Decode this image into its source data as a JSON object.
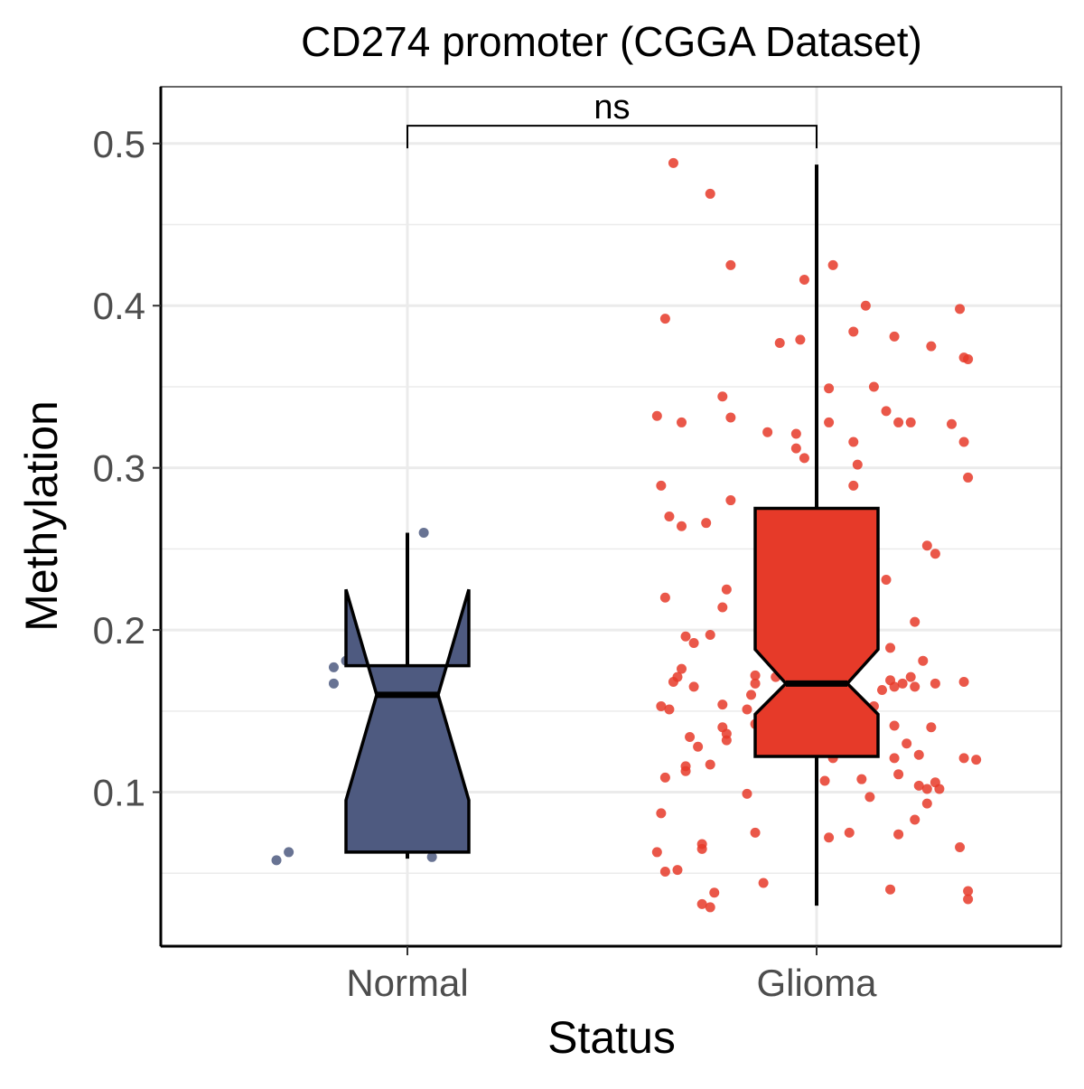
{
  "chart_data": {
    "type": "boxplot",
    "title": "CD274 promoter (CGGA Dataset)",
    "xlabel": "Status",
    "ylabel": "Methylation",
    "categories": [
      "Normal",
      "Glioma"
    ],
    "ylim": [
      0.005,
      0.535
    ],
    "yticks": [
      0.1,
      0.2,
      0.3,
      0.4,
      0.5
    ],
    "ytick_labels": [
      "0.1",
      "0.2",
      "0.3",
      "0.4",
      "0.5"
    ],
    "grid": true,
    "notched": true,
    "colors": {
      "Normal": "#4E5A80",
      "Glioma": "#E63A29"
    },
    "boxes": [
      {
        "category": "Normal",
        "whisker_low": 0.059,
        "q1": 0.063,
        "median": 0.16,
        "q3": 0.178,
        "whisker_high": 0.26,
        "notch_low": 0.095,
        "notch_high": 0.225
      },
      {
        "category": "Glioma",
        "whisker_low": 0.03,
        "q1": 0.122,
        "median": 0.167,
        "q3": 0.275,
        "whisker_high": 0.487,
        "notch_low": 0.148,
        "notch_high": 0.188
      }
    ],
    "significance": {
      "groups": [
        "Normal",
        "Glioma"
      ],
      "label": "ns",
      "y": 0.511
    },
    "points": {
      "Normal": [
        [
          -0.32,
          0.058
        ],
        [
          -0.29,
          0.063
        ],
        [
          -0.18,
          0.177
        ],
        [
          -0.18,
          0.167
        ],
        [
          -0.15,
          0.181
        ],
        [
          0.04,
          0.26
        ],
        [
          0.06,
          0.06
        ]
      ],
      "Glioma": [
        [
          -0.35,
          0.488
        ],
        [
          -0.26,
          0.469
        ],
        [
          -0.21,
          0.425
        ],
        [
          -0.03,
          0.416
        ],
        [
          0.04,
          0.425
        ],
        [
          -0.37,
          0.392
        ],
        [
          0.12,
          0.4
        ],
        [
          0.09,
          0.384
        ],
        [
          0.19,
          0.381
        ],
        [
          0.28,
          0.375
        ],
        [
          0.35,
          0.398
        ],
        [
          0.36,
          0.368
        ],
        [
          0.37,
          0.367
        ],
        [
          -0.09,
          0.377
        ],
        [
          -0.04,
          0.379
        ],
        [
          -0.23,
          0.344
        ],
        [
          0.03,
          0.349
        ],
        [
          0.14,
          0.35
        ],
        [
          -0.39,
          0.332
        ],
        [
          -0.33,
          0.328
        ],
        [
          -0.21,
          0.331
        ],
        [
          -0.12,
          0.322
        ],
        [
          -0.05,
          0.321
        ],
        [
          -0.05,
          0.312
        ],
        [
          -0.03,
          0.306
        ],
        [
          0.03,
          0.328
        ],
        [
          0.09,
          0.316
        ],
        [
          0.17,
          0.335
        ],
        [
          0.2,
          0.328
        ],
        [
          0.23,
          0.328
        ],
        [
          0.33,
          0.327
        ],
        [
          0.36,
          0.316
        ],
        [
          0.37,
          0.294
        ],
        [
          0.1,
          0.302
        ],
        [
          0.09,
          0.289
        ],
        [
          -0.38,
          0.289
        ],
        [
          -0.21,
          0.28
        ],
        [
          -0.36,
          0.27
        ],
        [
          -0.33,
          0.264
        ],
        [
          -0.27,
          0.266
        ],
        [
          0.27,
          0.252
        ],
        [
          0.29,
          0.247
        ],
        [
          0.17,
          0.231
        ],
        [
          -0.37,
          0.22
        ],
        [
          -0.22,
          0.225
        ],
        [
          -0.23,
          0.214
        ],
        [
          0.24,
          0.205
        ],
        [
          -0.32,
          0.196
        ],
        [
          -0.3,
          0.192
        ],
        [
          -0.26,
          0.197
        ],
        [
          0.18,
          0.189
        ],
        [
          0.26,
          0.181
        ],
        [
          -0.33,
          0.176
        ],
        [
          -0.34,
          0.171
        ],
        [
          -0.35,
          0.168
        ],
        [
          -0.3,
          0.165
        ],
        [
          -0.38,
          0.153
        ],
        [
          -0.36,
          0.151
        ],
        [
          -0.23,
          0.154
        ],
        [
          -0.17,
          0.151
        ],
        [
          -0.15,
          0.172
        ],
        [
          -0.15,
          0.167
        ],
        [
          -0.16,
          0.16
        ],
        [
          -0.1,
          0.171
        ],
        [
          -0.11,
          0.151
        ],
        [
          -0.15,
          0.142
        ],
        [
          -0.14,
          0.133
        ],
        [
          0.18,
          0.169
        ],
        [
          0.19,
          0.165
        ],
        [
          0.21,
          0.167
        ],
        [
          0.23,
          0.171
        ],
        [
          0.29,
          0.167
        ],
        [
          0.36,
          0.168
        ],
        [
          0.16,
          0.163
        ],
        [
          0.14,
          0.153
        ],
        [
          0.24,
          0.165
        ],
        [
          -0.31,
          0.134
        ],
        [
          -0.29,
          0.128
        ],
        [
          -0.23,
          0.14
        ],
        [
          -0.22,
          0.136
        ],
        [
          -0.22,
          0.132
        ],
        [
          0.19,
          0.141
        ],
        [
          0.28,
          0.14
        ],
        [
          0.12,
          0.133
        ],
        [
          0.22,
          0.13
        ],
        [
          0.25,
          0.123
        ],
        [
          0.19,
          0.121
        ],
        [
          -0.32,
          0.116
        ],
        [
          -0.32,
          0.113
        ],
        [
          -0.26,
          0.117
        ],
        [
          -0.37,
          0.109
        ],
        [
          0.2,
          0.111
        ],
        [
          0.36,
          0.121
        ],
        [
          0.39,
          0.12
        ],
        [
          0.02,
          0.107
        ],
        [
          0.11,
          0.108
        ],
        [
          0.25,
          0.104
        ],
        [
          0.29,
          0.106
        ],
        [
          0.3,
          0.102
        ],
        [
          0.27,
          0.102
        ],
        [
          0.13,
          0.097
        ],
        [
          -0.17,
          0.099
        ],
        [
          0.27,
          0.093
        ],
        [
          0.24,
          0.083
        ],
        [
          -0.38,
          0.087
        ],
        [
          -0.15,
          0.075
        ],
        [
          0.08,
          0.075
        ],
        [
          0.03,
          0.072
        ],
        [
          0.2,
          0.074
        ],
        [
          -0.28,
          0.068
        ],
        [
          -0.39,
          0.063
        ],
        [
          -0.28,
          0.065
        ],
        [
          0.35,
          0.066
        ],
        [
          -0.37,
          0.051
        ],
        [
          -0.34,
          0.052
        ],
        [
          -0.13,
          0.044
        ],
        [
          0.18,
          0.04
        ],
        [
          -0.25,
          0.038
        ],
        [
          0.37,
          0.039
        ],
        [
          0.37,
          0.034
        ],
        [
          -0.28,
          0.031
        ],
        [
          -0.26,
          0.029
        ],
        [
          0.04,
          0.121
        ]
      ]
    }
  }
}
